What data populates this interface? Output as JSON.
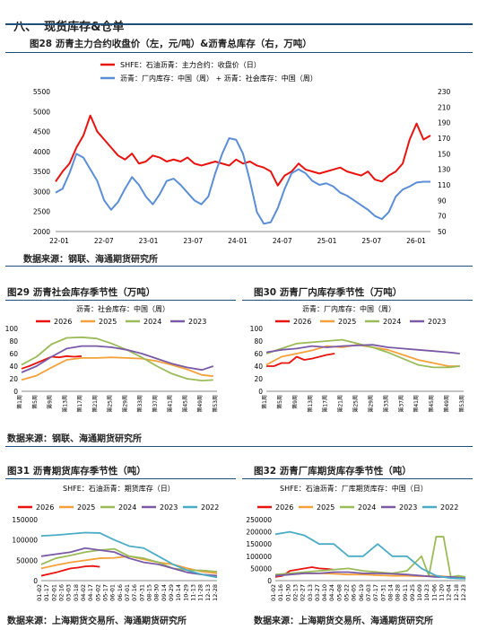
{
  "section": {
    "number": "八、",
    "title": "现货库存&仓单"
  },
  "colors": {
    "red": "#e8130f",
    "blue": "#5b8ed6",
    "orange": "#f4a13b",
    "green": "#9bbb59",
    "purple": "#7a5aa6",
    "cyan": "#4bacc6",
    "navy": "#1f4e79"
  },
  "fig28": {
    "title": "图28 沥青主力合约收盘价（左，元/吨）&沥青总库存（右，万吨）",
    "legend_red": "SHFE：石油沥青：主力合约：收盘价（日）",
    "legend_blue": "沥青：厂内库存：中国（周） + 沥青：社会库存：中国（周）",
    "source": "数据来源：钢联、海通期货研究所"
  },
  "fig29": {
    "title": "图29 沥青社会库存季节性（万吨）",
    "subtitle": "沥青：社会库存：中国（周）",
    "source": "数据来源：钢联、海通期货研究所"
  },
  "fig30": {
    "title": "图30 沥青厂内库存季节性（万吨）",
    "subtitle": "沥青：厂内库存：中国（周）"
  },
  "fig31": {
    "title": "图31 沥青期货库存季节性（吨）",
    "subtitle": "SHFE：石油沥青：期货库存（日）",
    "source": "数据来源：上海期货交易所、海通期货研究所"
  },
  "fig32": {
    "title": "图32 沥青厂库期货库存季节性（吨）",
    "subtitle": "SHFE：石油沥青：厂库期货库存：中国（日）",
    "source": "数据来源：上海期货交易所、海通期货研究所"
  },
  "chart_data": [
    {
      "id": "fig28",
      "type": "line",
      "x_ticks": [
        "22-01",
        "22-07",
        "23-01",
        "23-07",
        "24-01",
        "24-07",
        "25-01",
        "25-07",
        "26-01"
      ],
      "y_left": {
        "ticks": [
          2000,
          2500,
          3000,
          3500,
          4000,
          4500,
          5000,
          5500
        ],
        "ylim": [
          2000,
          5500
        ]
      },
      "y_right": {
        "ticks": [
          50,
          70,
          90,
          110,
          130,
          150,
          170,
          190,
          210,
          230
        ],
        "ylim": [
          50,
          230
        ]
      },
      "series": [
        {
          "name": "SHFE：石油沥青：主力合约：收盘价（日）",
          "axis": "left",
          "color": "#e8130f",
          "x": [
            0,
            1,
            2,
            3,
            4,
            5,
            6,
            7,
            8,
            9,
            10,
            11,
            12,
            13,
            14,
            15,
            16,
            17,
            18,
            19,
            20,
            21,
            22,
            23,
            24,
            25,
            26,
            27,
            28,
            29,
            30,
            31,
            32,
            33,
            34,
            35,
            36,
            37,
            38,
            39,
            40,
            41,
            42,
            43,
            44,
            45,
            46,
            47,
            48,
            49,
            50,
            51,
            52,
            53,
            54
          ],
          "values": [
            3250,
            3500,
            3700,
            4100,
            4400,
            4900,
            4500,
            4300,
            4100,
            3900,
            3800,
            3950,
            3700,
            3750,
            3900,
            3850,
            3750,
            3800,
            3750,
            3850,
            3700,
            3650,
            3700,
            3750,
            3700,
            3650,
            3800,
            3700,
            3750,
            3650,
            3600,
            3500,
            3150,
            3400,
            3500,
            3700,
            3550,
            3500,
            3450,
            3500,
            3550,
            3600,
            3500,
            3450,
            3400,
            3500,
            3300,
            3250,
            3400,
            3500,
            3700,
            4300,
            4700,
            4300,
            4400
          ]
        },
        {
          "name": "沥青：厂内库存：中国（周） + 沥青：社会库存：中国（周）",
          "axis": "right",
          "color": "#5b8ed6",
          "x": [
            0,
            1,
            2,
            3,
            4,
            5,
            6,
            7,
            8,
            9,
            10,
            11,
            12,
            13,
            14,
            15,
            16,
            17,
            18,
            19,
            20,
            21,
            22,
            23,
            24,
            25,
            26,
            27,
            28,
            29,
            30,
            31,
            32,
            33,
            34,
            35,
            36,
            37,
            38,
            39,
            40,
            41,
            42,
            43,
            44,
            45,
            46,
            47,
            48,
            49,
            50,
            51,
            52,
            53,
            54
          ],
          "values": [
            100,
            105,
            125,
            150,
            145,
            130,
            115,
            90,
            78,
            88,
            105,
            120,
            110,
            95,
            85,
            98,
            115,
            118,
            110,
            100,
            90,
            85,
            95,
            125,
            150,
            170,
            168,
            150,
            115,
            75,
            60,
            62,
            80,
            105,
            125,
            130,
            125,
            115,
            110,
            112,
            108,
            100,
            96,
            90,
            84,
            78,
            70,
            66,
            75,
            95,
            104,
            108,
            113,
            114,
            114
          ]
        }
      ]
    },
    {
      "id": "fig29",
      "type": "line",
      "y_ticks": [
        0,
        20,
        40,
        60,
        80,
        100
      ],
      "ylim": [
        0,
        100
      ],
      "x_ticks": [
        "第1周",
        "第5周",
        "第9周",
        "第13周",
        "第17周",
        "第21周",
        "第25周",
        "第29周",
        "第33周",
        "第37周",
        "第41周",
        "第45周",
        "第49周",
        "第53周"
      ],
      "series": [
        {
          "name": "2026",
          "color": "#e8130f",
          "x": [
            1,
            3,
            5,
            7,
            9,
            11,
            13,
            15,
            17
          ],
          "values": [
            36,
            40,
            45,
            50,
            55,
            54,
            56,
            55,
            56
          ]
        },
        {
          "name": "2025",
          "color": "#f4a13b",
          "x": [
            1,
            5,
            9,
            13,
            17,
            21,
            25,
            29,
            33,
            37,
            41,
            45,
            49,
            52
          ],
          "values": [
            18,
            25,
            38,
            50,
            53,
            53,
            54,
            53,
            52,
            48,
            42,
            35,
            26,
            24
          ]
        },
        {
          "name": "2024",
          "color": "#9bbb59",
          "x": [
            1,
            5,
            9,
            13,
            17,
            21,
            25,
            29,
            33,
            37,
            41,
            45,
            49,
            52
          ],
          "values": [
            42,
            55,
            75,
            85,
            86,
            84,
            76,
            66,
            54,
            40,
            28,
            20,
            17,
            18
          ]
        },
        {
          "name": "2023",
          "color": "#7a5aa6",
          "x": [
            1,
            5,
            9,
            13,
            17,
            21,
            25,
            29,
            33,
            37,
            41,
            45,
            49,
            52
          ],
          "values": [
            30,
            40,
            55,
            68,
            72,
            72,
            70,
            66,
            60,
            52,
            44,
            38,
            34,
            40
          ]
        }
      ]
    },
    {
      "id": "fig30",
      "type": "line",
      "y_ticks": [
        0,
        20,
        40,
        60,
        80,
        100
      ],
      "ylim": [
        0,
        100
      ],
      "x_ticks": [
        "第1周",
        "第5周",
        "第9周",
        "第13周",
        "第17周",
        "第21周",
        "第25周",
        "第29周",
        "第33周",
        "第37周",
        "第41周",
        "第45周",
        "第49周",
        "第53周"
      ],
      "series": [
        {
          "name": "2026",
          "color": "#e8130f",
          "x": [
            1,
            3,
            5,
            7,
            9,
            11,
            13,
            15,
            17,
            19
          ],
          "values": [
            40,
            40,
            45,
            45,
            55,
            50,
            52,
            55,
            58,
            60
          ]
        },
        {
          "name": "2025",
          "color": "#f4a13b",
          "x": [
            1,
            5,
            9,
            13,
            17,
            21,
            25,
            29,
            33,
            37,
            41,
            45,
            49,
            52
          ],
          "values": [
            42,
            55,
            60,
            65,
            72,
            70,
            74,
            70,
            66,
            58,
            50,
            45,
            40,
            40
          ]
        },
        {
          "name": "2024",
          "color": "#9bbb59",
          "x": [
            1,
            5,
            9,
            13,
            17,
            21,
            25,
            29,
            33,
            37,
            41,
            45,
            49,
            52
          ],
          "values": [
            60,
            68,
            76,
            78,
            80,
            82,
            76,
            70,
            62,
            52,
            42,
            38,
            38,
            40
          ]
        },
        {
          "name": "2023",
          "color": "#7a5aa6",
          "x": [
            1,
            5,
            9,
            13,
            17,
            21,
            25,
            29,
            33,
            37,
            41,
            45,
            49,
            52
          ],
          "values": [
            62,
            66,
            68,
            72,
            70,
            72,
            73,
            74,
            70,
            68,
            66,
            64,
            62,
            60
          ]
        }
      ]
    },
    {
      "id": "fig31",
      "type": "line",
      "y_ticks": [
        0,
        50000,
        100000,
        150000
      ],
      "y_tick_labels": [
        "0",
        "50000",
        "100000",
        "150000"
      ],
      "ylim": [
        0,
        150000
      ],
      "x_ticks": [
        "01-02",
        "01-17",
        "02-01",
        "02-16",
        "03-03",
        "03-18",
        "04-02",
        "04-17",
        "05-02",
        "05-17",
        "06-01",
        "06-16",
        "07-01",
        "07-16",
        "07-31",
        "08-15",
        "08-30",
        "09-14",
        "09-29",
        "10-14",
        "10-29",
        "11-13",
        "11-28",
        "12-13",
        "12-28"
      ],
      "series": [
        {
          "name": "2026",
          "color": "#e8130f",
          "x": [
            0,
            1,
            2,
            3,
            4,
            5,
            6,
            7,
            8
          ],
          "values": [
            12000,
            16000,
            20000,
            25000,
            30000,
            32000,
            35000,
            36000,
            34000
          ]
        },
        {
          "name": "2025",
          "color": "#f4a13b",
          "x": [
            0,
            2,
            4,
            6,
            8,
            10,
            12,
            14,
            16,
            18,
            20,
            22,
            24
          ],
          "values": [
            30000,
            38000,
            45000,
            50000,
            55000,
            56000,
            60000,
            52000,
            45000,
            40000,
            30000,
            22000,
            18000
          ]
        },
        {
          "name": "2024",
          "color": "#9bbb59",
          "x": [
            0,
            2,
            4,
            6,
            8,
            10,
            12,
            14,
            16,
            18,
            20,
            22,
            24
          ],
          "values": [
            40000,
            55000,
            62000,
            70000,
            75000,
            78000,
            60000,
            55000,
            45000,
            30000,
            26000,
            25000,
            22000
          ]
        },
        {
          "name": "2023",
          "color": "#7a5aa6",
          "x": [
            0,
            2,
            4,
            6,
            8,
            10,
            12,
            14,
            16,
            18,
            20,
            22,
            24
          ],
          "values": [
            60000,
            65000,
            70000,
            80000,
            75000,
            70000,
            55000,
            45000,
            40000,
            30000,
            20000,
            15000,
            12000
          ]
        },
        {
          "name": "2022",
          "color": "#4bacc6",
          "x": [
            0,
            2,
            4,
            6,
            8,
            10,
            12,
            14,
            16,
            18,
            20,
            22,
            24
          ],
          "values": [
            110000,
            112000,
            115000,
            118000,
            117000,
            100000,
            85000,
            80000,
            60000,
            40000,
            25000,
            15000,
            8000
          ]
        }
      ]
    },
    {
      "id": "fig32",
      "type": "line",
      "y_ticks": [
        0,
        50000,
        100000,
        150000,
        200000,
        250000
      ],
      "y_tick_labels": [
        "0",
        "50000",
        "100000",
        "150000",
        "200000",
        "250000"
      ],
      "ylim": [
        0,
        250000
      ],
      "x_ticks": [
        "01-02",
        "01-16",
        "01-30",
        "02-13",
        "02-27",
        "03-13",
        "03-27",
        "04-10",
        "04-24",
        "05-08",
        "05-22",
        "06-05",
        "06-19",
        "07-03",
        "07-17",
        "07-31",
        "08-14",
        "08-28",
        "09-11",
        "09-25",
        "10-09",
        "10-23",
        "11-06",
        "11-20",
        "12-04",
        "12-18",
        "12-23"
      ],
      "series": [
        {
          "name": "2026",
          "color": "#e8130f",
          "x": [
            0,
            1,
            2,
            3,
            4,
            5,
            6,
            7,
            8
          ],
          "values": [
            15000,
            20000,
            40000,
            45000,
            50000,
            55000,
            50000,
            48000,
            45000
          ]
        },
        {
          "name": "2025",
          "color": "#f4a13b",
          "x": [
            0,
            2,
            4,
            6,
            8,
            10,
            12,
            14,
            16,
            18,
            20,
            22,
            24,
            26
          ],
          "values": [
            20000,
            25000,
            30000,
            30000,
            28000,
            25000,
            25000,
            22000,
            20000,
            20000,
            18000,
            20000,
            15000,
            15000
          ]
        },
        {
          "name": "2024",
          "color": "#9bbb59",
          "x": [
            0,
            2,
            4,
            6,
            8,
            10,
            12,
            14,
            16,
            18,
            20,
            21,
            22,
            23,
            24,
            25,
            26
          ],
          "values": [
            25000,
            30000,
            35000,
            40000,
            45000,
            50000,
            40000,
            35000,
            30000,
            40000,
            100000,
            20000,
            180000,
            180000,
            15000,
            20000,
            15000
          ]
        },
        {
          "name": "2023",
          "color": "#7a5aa6",
          "x": [
            0,
            2,
            4,
            6,
            8,
            10,
            12,
            14,
            16,
            18,
            20,
            22,
            24,
            26
          ],
          "values": [
            20000,
            25000,
            30000,
            30000,
            35000,
            35000,
            30000,
            30000,
            28000,
            25000,
            20000,
            15000,
            15000,
            10000
          ]
        },
        {
          "name": "2022",
          "color": "#4bacc6",
          "x": [
            0,
            2,
            4,
            6,
            8,
            10,
            12,
            14,
            16,
            18,
            20,
            22,
            24,
            26
          ],
          "values": [
            190000,
            200000,
            185000,
            150000,
            150000,
            100000,
            100000,
            150000,
            100000,
            100000,
            50000,
            20000,
            10000,
            8000
          ]
        }
      ]
    }
  ]
}
